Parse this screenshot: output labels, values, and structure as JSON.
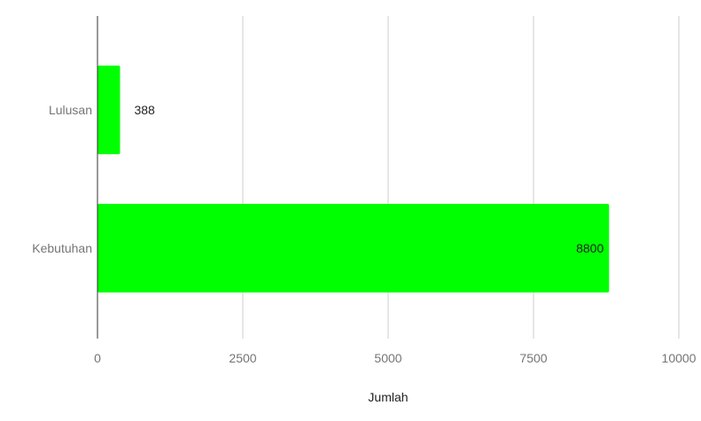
{
  "chart_data": {
    "type": "bar",
    "orientation": "horizontal",
    "title": "",
    "xlabel": "Jumlah",
    "ylabel": "",
    "categories": [
      "Lulusan",
      "Kebutuhan"
    ],
    "values": [
      388,
      8800
    ],
    "data_labels": [
      "388",
      "8800"
    ],
    "xlim": [
      0,
      10000
    ],
    "x_ticks": [
      0,
      2500,
      5000,
      7500,
      10000
    ],
    "x_tick_labels": [
      "0",
      "2500",
      "5000",
      "7500",
      "10000"
    ],
    "grid": true,
    "legend": "none",
    "bar_color": "#00ff00"
  }
}
